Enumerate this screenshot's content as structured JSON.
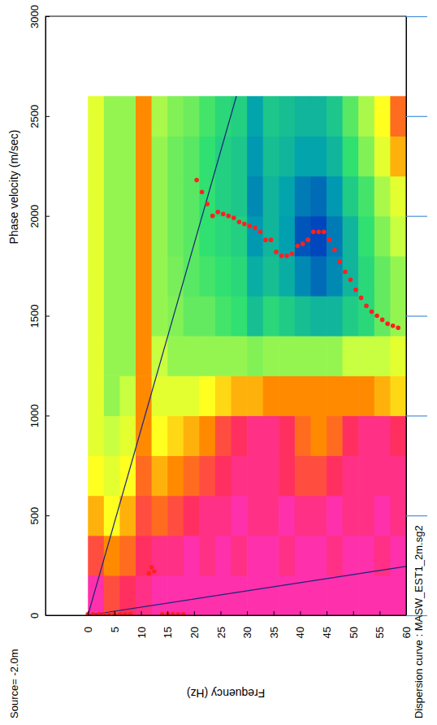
{
  "chart_data": {
    "type": "heatmap",
    "title": "Dispersion curve : MASW_EST1_2m.sg2",
    "annotation": "Source= -2.0m",
    "x_label": "Frequency (Hz)",
    "y_label": "Phase velocity (m/sec)",
    "xlim": [
      -8,
      60
    ],
    "ylim": [
      0,
      3000
    ],
    "xticks": [
      0,
      5,
      10,
      15,
      20,
      25,
      30,
      35,
      40,
      45,
      50,
      55,
      60
    ],
    "yticks": [
      0,
      500,
      1000,
      1500,
      2000,
      2500,
      3000
    ],
    "grid": false,
    "heatmap": {
      "x_bins": [
        0,
        3,
        6,
        9,
        12,
        15,
        18,
        21,
        24,
        27,
        30,
        33,
        36,
        39,
        42,
        45,
        48,
        51,
        54,
        57,
        60
      ],
      "y_bins": [
        0,
        200,
        400,
        600,
        800,
        1000,
        1200,
        1400,
        1600,
        1800,
        2000,
        2200,
        2400,
        2600
      ],
      "zlim": [
        0,
        1
      ],
      "cells": [
        [
          0.05,
          0.2,
          0.15,
          0.1,
          0.05,
          0.05,
          0.05,
          0.05,
          0.05,
          0.05,
          0.05,
          0.05,
          0.05,
          0.05,
          0.05,
          0.05,
          0.05,
          0.05,
          0.05,
          0.05
        ],
        [
          0.2,
          0.3,
          0.25,
          0.15,
          0.1,
          0.1,
          0.05,
          0.1,
          0.05,
          0.1,
          0.05,
          0.05,
          0.1,
          0.05,
          0.05,
          0.1,
          0.05,
          0.05,
          0.1,
          0.05
        ],
        [
          0.35,
          0.45,
          0.35,
          0.2,
          0.25,
          0.2,
          0.15,
          0.1,
          0.1,
          0.05,
          0.1,
          0.1,
          0.05,
          0.1,
          0.1,
          0.05,
          0.1,
          0.1,
          0.05,
          0.1
        ],
        [
          0.45,
          0.5,
          0.45,
          0.25,
          0.35,
          0.3,
          0.25,
          0.2,
          0.15,
          0.1,
          0.1,
          0.1,
          0.15,
          0.2,
          0.2,
          0.15,
          0.1,
          0.1,
          0.1,
          0.1
        ],
        [
          0.5,
          0.55,
          0.5,
          0.3,
          0.45,
          0.4,
          0.35,
          0.3,
          0.2,
          0.15,
          0.1,
          0.1,
          0.15,
          0.25,
          0.3,
          0.25,
          0.15,
          0.1,
          0.1,
          0.15
        ],
        [
          0.5,
          0.6,
          0.55,
          0.3,
          0.5,
          0.5,
          0.5,
          0.45,
          0.4,
          0.35,
          0.35,
          0.3,
          0.3,
          0.3,
          0.3,
          0.3,
          0.3,
          0.3,
          0.35,
          0.4
        ],
        [
          0.5,
          0.6,
          0.6,
          0.3,
          0.55,
          0.6,
          0.6,
          0.6,
          0.6,
          0.6,
          0.62,
          0.6,
          0.6,
          0.6,
          0.6,
          0.6,
          0.55,
          0.55,
          0.55,
          0.5
        ],
        [
          0.5,
          0.6,
          0.6,
          0.3,
          0.6,
          0.62,
          0.65,
          0.65,
          0.68,
          0.7,
          0.78,
          0.72,
          0.75,
          0.78,
          0.8,
          0.8,
          0.75,
          0.72,
          0.65,
          0.6
        ],
        [
          0.5,
          0.6,
          0.6,
          0.3,
          0.6,
          0.63,
          0.66,
          0.68,
          0.7,
          0.72,
          0.82,
          0.78,
          0.82,
          0.88,
          0.92,
          0.88,
          0.8,
          0.72,
          0.65,
          0.6
        ],
        [
          0.5,
          0.6,
          0.6,
          0.3,
          0.6,
          0.64,
          0.66,
          0.7,
          0.72,
          0.74,
          0.86,
          0.8,
          0.85,
          0.95,
          0.97,
          0.9,
          0.8,
          0.7,
          0.62,
          0.55
        ],
        [
          0.5,
          0.6,
          0.6,
          0.3,
          0.6,
          0.64,
          0.66,
          0.7,
          0.74,
          0.76,
          0.88,
          0.8,
          0.84,
          0.9,
          0.92,
          0.86,
          0.75,
          0.68,
          0.58,
          0.5
        ],
        [
          0.5,
          0.6,
          0.6,
          0.3,
          0.6,
          0.64,
          0.66,
          0.7,
          0.74,
          0.76,
          0.86,
          0.78,
          0.8,
          0.84,
          0.84,
          0.8,
          0.7,
          0.62,
          0.5,
          0.35
        ],
        [
          0.5,
          0.6,
          0.6,
          0.3,
          0.58,
          0.62,
          0.64,
          0.68,
          0.72,
          0.74,
          0.84,
          0.76,
          0.78,
          0.8,
          0.8,
          0.76,
          0.66,
          0.58,
          0.45,
          0.25
        ]
      ]
    },
    "lines": [
      {
        "color": "#1a237e",
        "x": [
          0,
          28
        ],
        "y": [
          0,
          2600
        ]
      },
      {
        "color": "#1a237e",
        "x": [
          0,
          60
        ],
        "y": [
          0,
          245
        ]
      }
    ],
    "series": [
      {
        "type": "scatter",
        "color": "#ff2020",
        "marker": "circle",
        "x": [
          20.5,
          21.5,
          22.5,
          23.5,
          24.5,
          25.5,
          26.5,
          27.5,
          28.5,
          29.5,
          30.5,
          31.5,
          32.5,
          33.5,
          34.5,
          35.5,
          36.5,
          37.5,
          38.5,
          39.5,
          40.5,
          41.5,
          42.5,
          43.5,
          44.5,
          45.5,
          46.5,
          47.5,
          48.5,
          49.5,
          50.5,
          51.5,
          52.5,
          53.5,
          54.5,
          55.5,
          56.5,
          57.5,
          58.5
        ],
        "values": [
          2180,
          2120,
          2060,
          2000,
          2020,
          2010,
          2000,
          1990,
          1970,
          1960,
          1950,
          1940,
          1920,
          1880,
          1880,
          1820,
          1800,
          1800,
          1810,
          1850,
          1860,
          1880,
          1920,
          1920,
          1920,
          1880,
          1830,
          1770,
          1720,
          1680,
          1630,
          1590,
          1550,
          1520,
          1500,
          1480,
          1460,
          1450,
          1440
        ]
      },
      {
        "type": "scatter",
        "color": "#ff2020",
        "marker": "circle",
        "x": [
          0,
          1,
          2,
          3,
          4,
          5,
          6,
          7,
          8,
          11.5,
          12,
          12.5,
          14,
          15,
          16,
          17,
          18
        ],
        "values": [
          5,
          5,
          5,
          5,
          5,
          5,
          5,
          5,
          5,
          210,
          240,
          220,
          5,
          5,
          5,
          5,
          5
        ]
      }
    ]
  }
}
